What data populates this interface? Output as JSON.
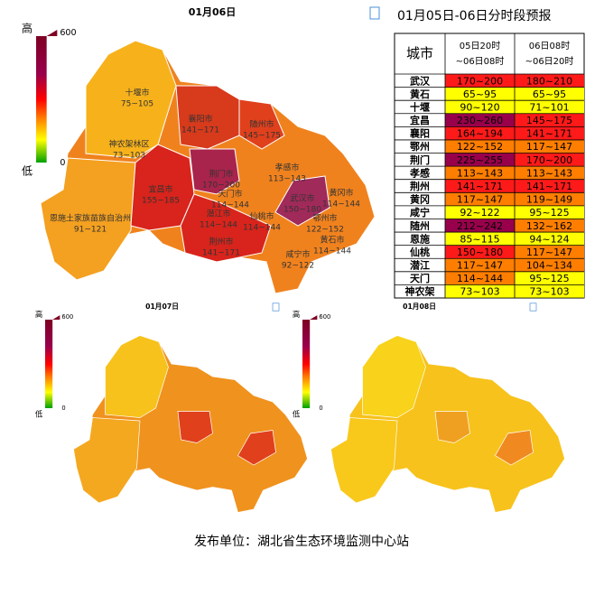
{
  "main_map": {
    "title": "01月06日",
    "legend": {
      "high": "高",
      "high_value": "600",
      "low": "低",
      "low_value": "0"
    },
    "labels": [
      {
        "name": "十堰市",
        "range": "75~105"
      },
      {
        "name": "神农架林区",
        "range": "73~103"
      },
      {
        "name": "襄阳市",
        "range": "141~171"
      },
      {
        "name": "随州市",
        "range": "145~175"
      },
      {
        "name": "孝感市",
        "range": "113~143"
      },
      {
        "name": "荆门市",
        "range": "170~200"
      },
      {
        "name": "宜昌市",
        "range": "155~185"
      },
      {
        "name": "恩施土家族苗族自治州",
        "range": "91~121"
      },
      {
        "name": "天门市",
        "range": "114~144"
      },
      {
        "name": "潜江市",
        "range": "114~144"
      },
      {
        "name": "仙桃市",
        "range": "114~144"
      },
      {
        "name": "荆州市",
        "range": "141~171"
      },
      {
        "name": "武汉市",
        "range": "150~180"
      },
      {
        "name": "黄冈市",
        "range": "114~144"
      },
      {
        "name": "鄂州市",
        "range": "122~152"
      },
      {
        "name": "黄石市",
        "range": "114~144"
      },
      {
        "name": "咸宁市",
        "range": "92~122"
      }
    ]
  },
  "small_maps": [
    {
      "title": "01月07日"
    },
    {
      "title": "01月08日"
    }
  ],
  "table": {
    "title": "01月05日-06日分时段预报",
    "header": [
      "城市",
      "05日20时 ~06日08时",
      "06日08时 ~06日20时"
    ],
    "rows": [
      {
        "city": "武汉",
        "cells": [
          {
            "text": "170~200",
            "color": "#ff1a1a"
          },
          {
            "text": "180~210",
            "color": "#ff1a1a"
          }
        ]
      },
      {
        "city": "黄石",
        "cells": [
          {
            "text": "65~95",
            "color": "#ffff00"
          },
          {
            "text": "65~95",
            "color": "#ffff00"
          }
        ]
      },
      {
        "city": "十堰",
        "cells": [
          {
            "text": "90~120",
            "color": "#ffff00"
          },
          {
            "text": "71~101",
            "color": "#ffff00"
          }
        ]
      },
      {
        "city": "宜昌",
        "cells": [
          {
            "text": "230~260",
            "color": "#99004c"
          },
          {
            "text": "145~175",
            "color": "#ff1a1a"
          }
        ]
      },
      {
        "city": "襄阳",
        "cells": [
          {
            "text": "164~194",
            "color": "#ff1a1a"
          },
          {
            "text": "141~171",
            "color": "#ff1a1a"
          }
        ]
      },
      {
        "city": "鄂州",
        "cells": [
          {
            "text": "122~152",
            "color": "#ff7e00"
          },
          {
            "text": "117~147",
            "color": "#ff7e00"
          }
        ]
      },
      {
        "city": "荆门",
        "cells": [
          {
            "text": "225~255",
            "color": "#99004c"
          },
          {
            "text": "170~200",
            "color": "#ff1a1a"
          }
        ]
      },
      {
        "city": "孝感",
        "cells": [
          {
            "text": "113~143",
            "color": "#ff7e00"
          },
          {
            "text": "113~143",
            "color": "#ff7e00"
          }
        ]
      },
      {
        "city": "荆州",
        "cells": [
          {
            "text": "141~171",
            "color": "#ff1a1a"
          },
          {
            "text": "141~171",
            "color": "#ff1a1a"
          }
        ]
      },
      {
        "city": "黄冈",
        "cells": [
          {
            "text": "117~147",
            "color": "#ff7e00"
          },
          {
            "text": "119~149",
            "color": "#ff7e00"
          }
        ]
      },
      {
        "city": "咸宁",
        "cells": [
          {
            "text": "92~122",
            "color": "#ffff00"
          },
          {
            "text": "95~125",
            "color": "#ffff00"
          }
        ]
      },
      {
        "city": "随州",
        "cells": [
          {
            "text": "212~242",
            "color": "#99004c"
          },
          {
            "text": "132~162",
            "color": "#ff7e00"
          }
        ]
      },
      {
        "city": "恩施",
        "cells": [
          {
            "text": "85~115",
            "color": "#ffff00"
          },
          {
            "text": "94~124",
            "color": "#ffff00"
          }
        ]
      },
      {
        "city": "仙桃",
        "cells": [
          {
            "text": "150~180",
            "color": "#ff1a1a"
          },
          {
            "text": "117~147",
            "color": "#ff7e00"
          }
        ]
      },
      {
        "city": "潜江",
        "cells": [
          {
            "text": "117~147",
            "color": "#ff7e00"
          },
          {
            "text": "104~134",
            "color": "#ff7e00"
          }
        ]
      },
      {
        "city": "天门",
        "cells": [
          {
            "text": "114~144",
            "color": "#ff7e00"
          },
          {
            "text": "95~125",
            "color": "#ffff00"
          }
        ]
      },
      {
        "city": "神农架",
        "cells": [
          {
            "text": "73~103",
            "color": "#ffff00"
          },
          {
            "text": "73~103",
            "color": "#ffff00"
          }
        ]
      }
    ]
  },
  "footer": "发布单位：湖北省生态环境监测中心站"
}
